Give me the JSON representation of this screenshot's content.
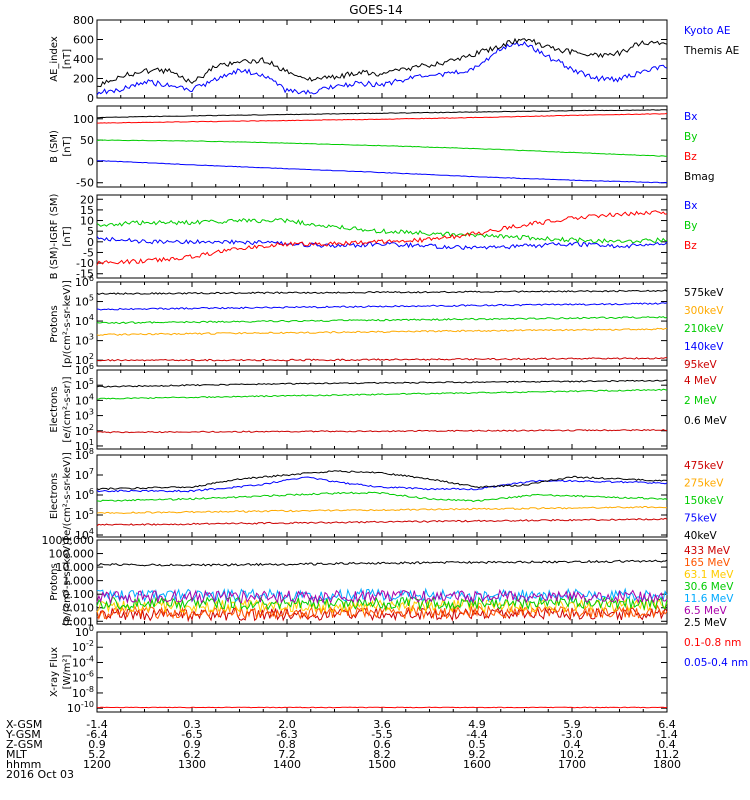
{
  "chart_data": {
    "title": "GOES-14",
    "type": "line",
    "x_hhmm_ticks": [
      "1200",
      "1300",
      "1400",
      "1500",
      "1600",
      "1700",
      "1800"
    ],
    "x_range_hhmm": [
      "1200",
      "1800"
    ],
    "panels": [
      {
        "id": "ae",
        "ylabel": [
          "AE_index",
          "[nT]"
        ],
        "yscale": "linear",
        "ylim": [
          0,
          800
        ],
        "yticks": [
          0,
          200,
          400,
          600,
          800
        ],
        "ytick_labels": [
          "0",
          "200",
          "400",
          "600",
          "800"
        ],
        "series": [
          {
            "name": "Kyoto AE",
            "color": "#0000ff",
            "x": [
              0,
              0.25,
              0.5,
              0.75,
              1,
              1.25,
              1.5,
              1.75,
              2,
              2.25,
              2.5,
              2.75,
              3,
              3.25,
              3.5,
              3.75,
              4,
              4.25,
              4.5,
              4.75,
              5,
              5.25,
              5.5,
              5.75,
              6
            ],
            "y": [
              60,
              80,
              170,
              130,
              80,
              190,
              290,
              230,
              70,
              60,
              110,
              150,
              140,
              190,
              230,
              250,
              310,
              520,
              560,
              420,
              300,
              200,
              190,
              270,
              330
            ]
          },
          {
            "name": "Themis AE",
            "color": "#000000",
            "x": [
              0,
              0.25,
              0.5,
              0.75,
              1,
              1.25,
              1.5,
              1.75,
              2,
              2.25,
              2.5,
              2.75,
              3,
              3.25,
              3.5,
              3.75,
              4,
              4.25,
              4.5,
              4.75,
              5,
              5.25,
              5.5,
              5.75,
              6
            ],
            "y": [
              130,
              220,
              280,
              280,
              150,
              330,
              370,
              390,
              280,
              190,
              210,
              260,
              250,
              300,
              340,
              380,
              460,
              540,
              610,
              520,
              470,
              440,
              460,
              580,
              540
            ]
          }
        ]
      },
      {
        "id": "bsm",
        "ylabel": [
          "B (SM)",
          "[nT]"
        ],
        "yscale": "linear",
        "ylim": [
          -60,
          130
        ],
        "yticks": [
          -50,
          0,
          50,
          100
        ],
        "ytick_labels": [
          "-50",
          "0",
          "50",
          "100"
        ],
        "series": [
          {
            "name": "Bx",
            "color": "#0000ff",
            "x": [
              0,
              1,
              2,
              3,
              4,
              5,
              6
            ],
            "y": [
              2,
              -8,
              -17,
              -26,
              -36,
              -44,
              -50
            ]
          },
          {
            "name": "By",
            "color": "#00cc00",
            "x": [
              0,
              1,
              2,
              3,
              4,
              5,
              6
            ],
            "y": [
              50,
              48,
              43,
              37,
              30,
              21,
              12
            ]
          },
          {
            "name": "Bz",
            "color": "#ff0000",
            "x": [
              0,
              1,
              2,
              3,
              4,
              5,
              6
            ],
            "y": [
              90,
              93,
              96,
              99,
              103,
              108,
              112
            ]
          },
          {
            "name": "Bmag",
            "color": "#000000",
            "x": [
              0,
              1,
              2,
              3,
              4,
              5,
              6
            ],
            "y": [
              103,
              107,
              110,
              113,
              116,
              119,
              121
            ]
          }
        ]
      },
      {
        "id": "bigrf",
        "ylabel": [
          "B (SM)-IGRF (SM)",
          "[nT]"
        ],
        "yscale": "linear",
        "ylim": [
          -17,
          22
        ],
        "yticks": [
          -15,
          -10,
          -5,
          0,
          5,
          10,
          15,
          20
        ],
        "ytick_labels": [
          "-15",
          "-10",
          "-5",
          "0",
          "5",
          "10",
          "15",
          "20"
        ],
        "series": [
          {
            "name": "Bx",
            "color": "#0000ff",
            "x": [
              0,
              0.5,
              1,
              1.5,
              2,
              2.5,
              3,
              3.5,
              4,
              4.5,
              5,
              5.5,
              6
            ],
            "y": [
              2,
              0,
              0,
              0,
              -1,
              -2,
              -1,
              -2,
              -3,
              -2,
              -1,
              -2,
              -1
            ]
          },
          {
            "name": "By",
            "color": "#00cc00",
            "x": [
              0,
              0.5,
              1,
              1.5,
              2,
              2.5,
              3,
              3.5,
              4,
              4.5,
              5,
              5.5,
              6
            ],
            "y": [
              8,
              9,
              9,
              10,
              10,
              7,
              5,
              4,
              3,
              2,
              1,
              0,
              1
            ]
          },
          {
            "name": "Bz",
            "color": "#ff0000",
            "x": [
              0,
              0.5,
              1,
              1.5,
              2,
              2.5,
              3,
              3.5,
              4,
              4.5,
              5,
              5.5,
              6
            ],
            "y": [
              -10,
              -9,
              -7,
              -3,
              -1,
              -1,
              0,
              1,
              4,
              8,
              11,
              13,
              14
            ]
          }
        ]
      },
      {
        "id": "protons1",
        "ylabel": [
          "Protons",
          "[p/(cm²-s-sr-keV)]"
        ],
        "yscale": "log",
        "ylim_exp": [
          1.7,
          6
        ],
        "ytick_exps": [
          2,
          3,
          4,
          5,
          6
        ],
        "series": [
          {
            "name": "575keV",
            "color": "#000000",
            "x": [
              0,
              2,
              4,
              6
            ],
            "y_exp": [
              5.4,
              5.45,
              5.5,
              5.55
            ]
          },
          {
            "name": "300keV",
            "color": "#ffaa00",
            "x": [
              0,
              2,
              4,
              6
            ],
            "y_exp": [
              3.3,
              3.4,
              3.5,
              3.6
            ]
          },
          {
            "name": "210keV",
            "color": "#00cc00",
            "x": [
              0,
              2,
              4,
              6
            ],
            "y_exp": [
              3.9,
              4.0,
              4.1,
              4.2
            ]
          },
          {
            "name": "140keV",
            "color": "#0000ff",
            "x": [
              0,
              2,
              4,
              6
            ],
            "y_exp": [
              4.6,
              4.7,
              4.8,
              4.9
            ]
          },
          {
            "name": "95keV",
            "color": "#cc0000",
            "x": [
              0,
              2,
              4,
              6
            ],
            "y_exp": [
              2.0,
              2.0,
              2.05,
              2.1
            ]
          }
        ]
      },
      {
        "id": "electrons1",
        "ylabel": [
          "Electrons",
          "[e/(cm²-s-sr)]"
        ],
        "yscale": "log",
        "ylim_exp": [
          0.8,
          6
        ],
        "ytick_exps": [
          1,
          2,
          3,
          4,
          5,
          6
        ],
        "series": [
          {
            "name": "4 MeV",
            "color": "#cc0000",
            "x": [
              0,
              2,
              4,
              6
            ],
            "y_exp": [
              1.9,
              1.95,
              2.0,
              2.05
            ]
          },
          {
            "name": "2 MeV",
            "color": "#00cc00",
            "x": [
              0,
              2,
              4,
              6
            ],
            "y_exp": [
              4.1,
              4.3,
              4.5,
              4.7
            ]
          },
          {
            "name": "0.6 MeV",
            "color": "#000000",
            "x": [
              0,
              2,
              4,
              6
            ],
            "y_exp": [
              4.9,
              5.1,
              5.2,
              5.3
            ]
          }
        ]
      },
      {
        "id": "electrons2",
        "ylabel": [
          "Electrons",
          "[e/(cm²-s-sr-keV)]"
        ],
        "yscale": "log",
        "ylim_exp": [
          3.9,
          8
        ],
        "ytick_exps": [
          4,
          5,
          6,
          7,
          8
        ],
        "series": [
          {
            "name": "475keV",
            "color": "#cc0000",
            "x": [
              0,
              2,
              4,
              6
            ],
            "y_exp": [
              4.5,
              4.6,
              4.7,
              4.8
            ]
          },
          {
            "name": "275keV",
            "color": "#ffaa00",
            "x": [
              0,
              2,
              4,
              6
            ],
            "y_exp": [
              5.1,
              5.2,
              5.3,
              5.4
            ]
          },
          {
            "name": "150keV",
            "color": "#00cc00",
            "x": [
              0,
              1,
              2,
              2.6,
              3,
              3.5,
              4,
              4.6,
              5,
              6
            ],
            "y_exp": [
              5.7,
              5.8,
              6.0,
              6.1,
              6.1,
              5.8,
              5.7,
              6.0,
              5.95,
              5.8
            ]
          },
          {
            "name": "75keV",
            "color": "#0000ff",
            "x": [
              0,
              1,
              1.7,
              2.2,
              2.6,
              3,
              3.5,
              4,
              4.6,
              5,
              6
            ],
            "y_exp": [
              6.2,
              6.2,
              6.5,
              6.9,
              6.6,
              6.4,
              6.3,
              6.3,
              6.7,
              6.7,
              6.6
            ]
          },
          {
            "name": "40keV",
            "color": "#000000",
            "x": [
              0,
              1,
              1.5,
              2,
              2.5,
              3,
              3.5,
              4,
              4.5,
              5,
              6
            ],
            "y_exp": [
              6.3,
              6.4,
              6.8,
              7.0,
              7.2,
              7.1,
              6.8,
              6.4,
              6.5,
              6.9,
              6.7
            ]
          }
        ]
      },
      {
        "id": "protons2",
        "ylabel": [
          "Protons",
          "[p/(cm²-s-sr-keV)]"
        ],
        "yscale": "log",
        "ylim_exp": [
          -3.2,
          3
        ],
        "ytick_exps": [
          -3,
          -2,
          -1,
          0,
          1,
          2,
          3
        ],
        "ytick_labels": [
          "0.001",
          "0.010",
          "0.100",
          "1.000",
          "10.000",
          "100.000",
          "1000.000"
        ],
        "series": [
          {
            "name": "433 MeV",
            "color": "#cc0000",
            "x": [
              0,
              6
            ],
            "y_exp": [
              -2.5,
              -2.45
            ]
          },
          {
            "name": "165 MeV",
            "color": "#ff5500",
            "x": [
              0,
              6
            ],
            "y_exp": [
              -2.35,
              -2.3
            ]
          },
          {
            "name": "63.1 MeV",
            "color": "#ffcc00",
            "x": [
              0,
              6
            ],
            "y_exp": [
              -1.9,
              -1.85
            ]
          },
          {
            "name": "30.6 MeV",
            "color": "#00cc00",
            "x": [
              0,
              6
            ],
            "y_exp": [
              -1.7,
              -1.65
            ]
          },
          {
            "name": "11.6 MeV",
            "color": "#00aaff",
            "x": [
              0,
              6
            ],
            "y_exp": [
              -1.1,
              -1.05
            ]
          },
          {
            "name": "6.5 MeV",
            "color": "#aa00aa",
            "x": [
              0,
              6
            ],
            "y_exp": [
              -1.2,
              -1.15
            ]
          },
          {
            "name": "2.5 MeV",
            "color": "#000000",
            "x": [
              0,
              1,
              2,
              3,
              4,
              5,
              6
            ],
            "y_exp": [
              1.2,
              1.15,
              1.2,
              1.3,
              1.35,
              1.4,
              1.45
            ]
          }
        ]
      },
      {
        "id": "xray",
        "ylabel": [
          "X-ray Flux",
          "[W/m²]"
        ],
        "yscale": "log",
        "ylim_exp": [
          -10.5,
          0
        ],
        "ytick_exps": [
          -10,
          -8,
          -6,
          -4,
          -2,
          0
        ],
        "series": [
          {
            "name": "0.1-0.8 nm",
            "color": "#ff0000",
            "x": [
              0,
              6
            ],
            "y_exp": [
              -9.9,
              -9.9
            ]
          },
          {
            "name": "0.05-0.4 nm",
            "color": "#0000ff",
            "x": [],
            "y_exp": []
          }
        ]
      }
    ],
    "ephemeris": {
      "row_labels": [
        "X-GSM",
        "Y-GSM",
        "Z-GSM",
        "MLT",
        "hhmm"
      ],
      "columns": [
        [
          "-1.4",
          "-6.4",
          "0.9",
          "5.2",
          "1200"
        ],
        [
          "0.3",
          "-6.5",
          "0.9",
          "6.2",
          "1300"
        ],
        [
          "2.0",
          "-6.3",
          "0.8",
          "7.2",
          "1400"
        ],
        [
          "3.6",
          "-5.5",
          "0.6",
          "8.2",
          "1500"
        ],
        [
          "4.9",
          "-4.4",
          "0.5",
          "9.2",
          "1600"
        ],
        [
          "5.9",
          "-3.0",
          "0.4",
          "10.2",
          "1700"
        ],
        [
          "6.4",
          "-1.4",
          "0.4",
          "11.2",
          "1800"
        ]
      ],
      "date": "2016 Oct 03"
    }
  }
}
